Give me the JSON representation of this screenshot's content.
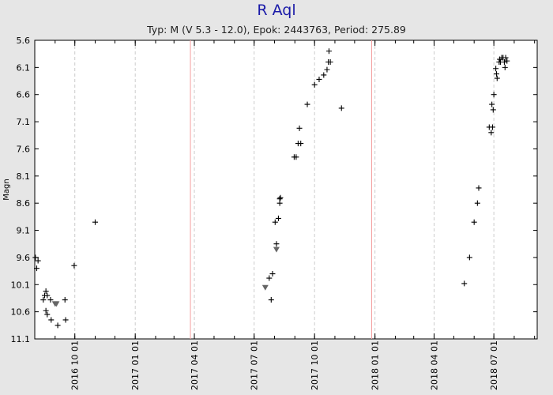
{
  "chart_data": {
    "type": "scatter",
    "title": "R Aql",
    "subtitle": "Typ: M (V 5.3 - 12.0), Epok: 2443763, Period: 275.89",
    "ylabel": "Magn",
    "xlabel": "",
    "y_inverted": true,
    "ylim": [
      11.1,
      5.6
    ],
    "yticks": [
      5.6,
      6.1,
      6.6,
      7.1,
      7.6,
      8.1,
      8.6,
      9.1,
      9.6,
      10.1,
      10.6,
      11.1
    ],
    "xlim": [
      "2016-08-01",
      "2018-09-05"
    ],
    "xtick_labels": [
      "2016 10 01",
      "2017 01 01",
      "2017 04 01",
      "2017 07 01",
      "2017 10 01",
      "2018 01 01",
      "2018 04 01",
      "2018 07 01"
    ],
    "xtick_dates": [
      "2016-10-01",
      "2017-01-01",
      "2017-04-01",
      "2017-07-01",
      "2017-10-01",
      "2018-01-01",
      "2018-04-01",
      "2018-07-01"
    ],
    "epoch_lines": [
      "2017-03-26",
      "2017-12-27"
    ],
    "grid": true,
    "legend": "none",
    "colors": {
      "observation": "#000000",
      "fainter_than": "#666666",
      "epoch_line": "#f4a0a0",
      "grid": "#cccccc",
      "plot_bg": "#ffffff",
      "title": "#1a1aa8"
    },
    "series": [
      {
        "marker": "plus",
        "points": [
          [
            "2016-08-02",
            9.6
          ],
          [
            "2016-08-04",
            9.8
          ],
          [
            "2016-08-06",
            9.66
          ],
          [
            "2016-08-14",
            10.38
          ],
          [
            "2016-08-16",
            10.3
          ],
          [
            "2016-08-18",
            10.22
          ],
          [
            "2016-08-18",
            10.58
          ],
          [
            "2016-08-20",
            10.65
          ],
          [
            "2016-08-20",
            10.3
          ],
          [
            "2016-08-25",
            10.38
          ],
          [
            "2016-08-26",
            10.75
          ],
          [
            "2016-09-05",
            10.85
          ],
          [
            "2016-09-16",
            10.38
          ],
          [
            "2016-09-17",
            10.75
          ],
          [
            "2016-09-30",
            9.75
          ],
          [
            "2016-11-01",
            8.95
          ],
          [
            "2017-07-24",
            9.98
          ],
          [
            "2017-07-27",
            10.38
          ],
          [
            "2017-07-29",
            9.9
          ],
          [
            "2017-08-02",
            8.95
          ],
          [
            "2017-08-04",
            9.35
          ],
          [
            "2017-08-07",
            8.88
          ],
          [
            "2017-08-09",
            8.6
          ],
          [
            "2017-08-09",
            8.52
          ],
          [
            "2017-08-10",
            8.5
          ],
          [
            "2017-08-31",
            7.75
          ],
          [
            "2017-09-03",
            7.75
          ],
          [
            "2017-09-06",
            7.5
          ],
          [
            "2017-09-08",
            7.22
          ],
          [
            "2017-09-10",
            7.5
          ],
          [
            "2017-09-20",
            6.78
          ],
          [
            "2017-10-01",
            6.42
          ],
          [
            "2017-10-08",
            6.32
          ],
          [
            "2017-10-15",
            6.24
          ],
          [
            "2017-10-20",
            6.14
          ],
          [
            "2017-10-22",
            6.0
          ],
          [
            "2017-10-23",
            5.8
          ],
          [
            "2017-10-25",
            6.0
          ],
          [
            "2017-11-11",
            6.85
          ],
          [
            "2018-05-17",
            10.08
          ],
          [
            "2018-05-25",
            9.6
          ],
          [
            "2018-06-01",
            8.95
          ],
          [
            "2018-06-06",
            8.6
          ],
          [
            "2018-06-08",
            8.32
          ],
          [
            "2018-06-24",
            7.2
          ],
          [
            "2018-06-27",
            7.3
          ],
          [
            "2018-06-28",
            6.78
          ],
          [
            "2018-06-29",
            7.2
          ],
          [
            "2018-06-30",
            6.88
          ],
          [
            "2018-07-01",
            6.6
          ],
          [
            "2018-07-04",
            6.12
          ],
          [
            "2018-07-05",
            6.22
          ],
          [
            "2018-07-06",
            6.3
          ],
          [
            "2018-07-09",
            6.0
          ],
          [
            "2018-07-10",
            5.95
          ],
          [
            "2018-07-11",
            6.0
          ],
          [
            "2018-07-13",
            5.92
          ],
          [
            "2018-07-15",
            5.92
          ],
          [
            "2018-07-17",
            6.0
          ],
          [
            "2018-07-18",
            6.1
          ],
          [
            "2018-07-19",
            5.92
          ],
          [
            "2018-07-21",
            5.98
          ]
        ]
      },
      {
        "marker": "triangle-down",
        "points": [
          [
            "2016-09-01",
            10.45
          ],
          [
            "2016-09-03",
            10.45
          ],
          [
            "2017-07-18",
            10.15
          ],
          [
            "2017-08-04",
            9.45
          ]
        ]
      }
    ]
  }
}
